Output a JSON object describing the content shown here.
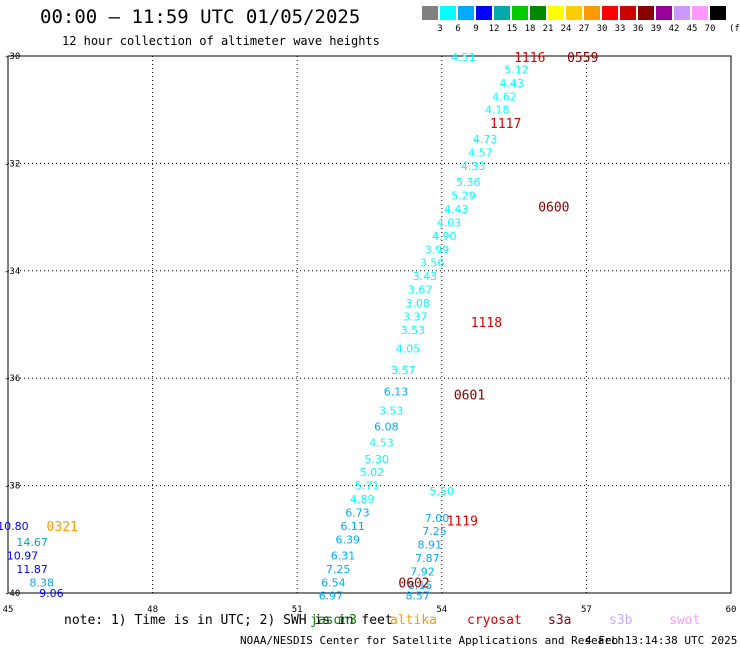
{
  "title": "00:00 – 11:59 UTC 01/05/2025",
  "subtitle": "12 hour collection of altimeter wave heights",
  "note": "note: 1) Time is in UTC; 2) SWH is in feet",
  "credit": "NOAA/NESDIS Center for Satellite Applications and Research",
  "timestamp": "4 Feb 13:14:38 UTC 2025",
  "satellites": [
    {
      "name": "jason3",
      "color": "#008000"
    },
    {
      "name": "altika",
      "color": "#ff9900"
    },
    {
      "name": "cryosat",
      "color": "#dd0000"
    },
    {
      "name": "s3a",
      "color": "#880000"
    },
    {
      "name": "s3b",
      "color": "#c8a8ff"
    },
    {
      "name": "swot",
      "color": "#ff99ff"
    }
  ],
  "colorbar": {
    "unit": "(ft)",
    "labels": [
      "3",
      "6",
      "9",
      "12",
      "15",
      "18",
      "21",
      "24",
      "27",
      "30",
      "33",
      "36",
      "39",
      "42",
      "45",
      "70"
    ],
    "colors": [
      "#808080",
      "#00ffff",
      "#00aaff",
      "#0000ff",
      "#00aaaa",
      "#00cc00",
      "#008800",
      "#ffff00",
      "#ffcc00",
      "#ff9900",
      "#ff0000",
      "#cc0000",
      "#880000",
      "#990099",
      "#cc99ff",
      "#ff99ff",
      "#000000"
    ]
  },
  "chart_data": {
    "type": "scatter",
    "xlabel": "",
    "ylabel": "",
    "xlim": [
      45,
      60
    ],
    "ylim": [
      -40,
      -30
    ],
    "x_ticks": [
      "45",
      "48",
      "51",
      "54",
      "57",
      "60"
    ],
    "y_ticks": [
      "-30",
      "-32",
      "-34",
      "-36",
      "-38",
      "-40"
    ],
    "grid": true,
    "time_labels": [
      {
        "text": "1116",
        "lon": 55.5,
        "lat": -30.02,
        "color": "#dd0000"
      },
      {
        "text": "0559",
        "lon": 56.6,
        "lat": -30.02,
        "color": "#880000"
      },
      {
        "text": "1117",
        "lon": 55.0,
        "lat": -31.25,
        "color": "#dd0000"
      },
      {
        "text": "0600",
        "lon": 56.0,
        "lat": -32.8,
        "color": "#880000"
      },
      {
        "text": "1118",
        "lon": 54.6,
        "lat": -34.95,
        "color": "#dd0000"
      },
      {
        "text": "0601",
        "lon": 54.25,
        "lat": -36.3,
        "color": "#880000"
      },
      {
        "text": "1119",
        "lon": 54.1,
        "lat": -38.65,
        "color": "#dd0000"
      },
      {
        "text": "0602",
        "lon": 53.1,
        "lat": -39.8,
        "color": "#880000"
      },
      {
        "text": "0321",
        "lon": 45.8,
        "lat": -38.75,
        "color": "#ff9900"
      }
    ],
    "series": [
      {
        "name": "altika",
        "color_by_swh": true,
        "points": [
          {
            "lon": 45.1,
            "lat": -38.75,
            "swh": 10.8
          },
          {
            "lon": 45.5,
            "lat": -39.05,
            "swh": 14.67
          },
          {
            "lon": 45.3,
            "lat": -39.3,
            "swh": 10.97
          },
          {
            "lon": 45.5,
            "lat": -39.55,
            "swh": 11.87
          },
          {
            "lon": 45.7,
            "lat": -39.8,
            "swh": 8.38
          },
          {
            "lon": 45.9,
            "lat": -40.0,
            "swh": 9.06
          }
        ]
      },
      {
        "name": "cryosat",
        "color_by_swh": true,
        "points": [
          {
            "lon": 54.45,
            "lat": -30.02,
            "swh": 4.51
          },
          {
            "lon": 55.55,
            "lat": -30.25,
            "swh": 5.12
          },
          {
            "lon": 55.45,
            "lat": -30.5,
            "swh": 4.43
          },
          {
            "lon": 55.3,
            "lat": -30.75,
            "swh": 4.62
          },
          {
            "lon": 55.15,
            "lat": -31.0,
            "swh": 4.18
          },
          {
            "lon": 54.9,
            "lat": -31.55,
            "swh": 4.73
          },
          {
            "lon": 54.8,
            "lat": -31.8,
            "swh": 4.57
          },
          {
            "lon": 54.65,
            "lat": -32.05,
            "swh": 4.33
          },
          {
            "lon": 54.55,
            "lat": -32.35,
            "swh": 5.36
          },
          {
            "lon": 54.45,
            "lat": -32.6,
            "swh": 5.29
          },
          {
            "lon": 54.3,
            "lat": -32.85,
            "swh": 4.43
          },
          {
            "lon": 54.15,
            "lat": -33.1,
            "swh": 4.03
          },
          {
            "lon": 54.05,
            "lat": -33.35,
            "swh": 4.9
          },
          {
            "lon": 53.9,
            "lat": -33.6,
            "swh": 3.99
          },
          {
            "lon": 53.8,
            "lat": -33.85,
            "swh": 3.56
          },
          {
            "lon": 53.65,
            "lat": -34.1,
            "swh": 3.43
          },
          {
            "lon": 53.55,
            "lat": -34.35,
            "swh": 3.67
          }
        ]
      },
      {
        "name": "s3a",
        "color_by_swh": true,
        "points": [
          {
            "lon": 53.5,
            "lat": -34.6,
            "swh": 3.08
          },
          {
            "lon": 53.45,
            "lat": -34.85,
            "swh": 3.37
          },
          {
            "lon": 53.4,
            "lat": -35.1,
            "swh": 3.53
          },
          {
            "lon": 53.3,
            "lat": -35.45,
            "swh": 4.05
          },
          {
            "lon": 53.2,
            "lat": -35.85,
            "swh": 3.57
          },
          {
            "lon": 53.05,
            "lat": -36.25,
            "swh": 6.13
          },
          {
            "lon": 52.95,
            "lat": -36.6,
            "swh": 3.53
          },
          {
            "lon": 52.85,
            "lat": -36.9,
            "swh": 6.08
          },
          {
            "lon": 52.75,
            "lat": -37.2,
            "swh": 4.53
          },
          {
            "lon": 52.65,
            "lat": -37.5,
            "swh": 5.3
          },
          {
            "lon": 52.55,
            "lat": -37.75,
            "swh": 5.02
          },
          {
            "lon": 52.45,
            "lat": -38.0,
            "swh": 5.71
          },
          {
            "lon": 52.35,
            "lat": -38.25,
            "swh": 4.89
          },
          {
            "lon": 52.25,
            "lat": -38.5,
            "swh": 6.73
          },
          {
            "lon": 52.15,
            "lat": -38.75,
            "swh": 6.11
          },
          {
            "lon": 52.05,
            "lat": -39.0,
            "swh": 6.39
          },
          {
            "lon": 51.95,
            "lat": -39.3,
            "swh": 6.31
          },
          {
            "lon": 51.85,
            "lat": -39.55,
            "swh": 7.25
          },
          {
            "lon": 51.75,
            "lat": -39.8,
            "swh": 6.54
          },
          {
            "lon": 51.7,
            "lat": -40.05,
            "swh": 6.97
          }
        ]
      },
      {
        "name": "s3b",
        "color_by_swh": true,
        "points": [
          {
            "lon": 54.0,
            "lat": -38.1,
            "swh": 5.5
          },
          {
            "lon": 53.9,
            "lat": -38.6,
            "swh": 7.0
          },
          {
            "lon": 53.85,
            "lat": -38.85,
            "swh": 7.25
          },
          {
            "lon": 53.75,
            "lat": -39.1,
            "swh": 8.91
          },
          {
            "lon": 53.7,
            "lat": -39.35,
            "swh": 7.87
          },
          {
            "lon": 53.6,
            "lat": -39.6,
            "swh": 7.92
          },
          {
            "lon": 53.55,
            "lat": -39.85,
            "swh": 8.15
          },
          {
            "lon": 53.5,
            "lat": -40.05,
            "swh": 8.57
          }
        ]
      }
    ]
  }
}
